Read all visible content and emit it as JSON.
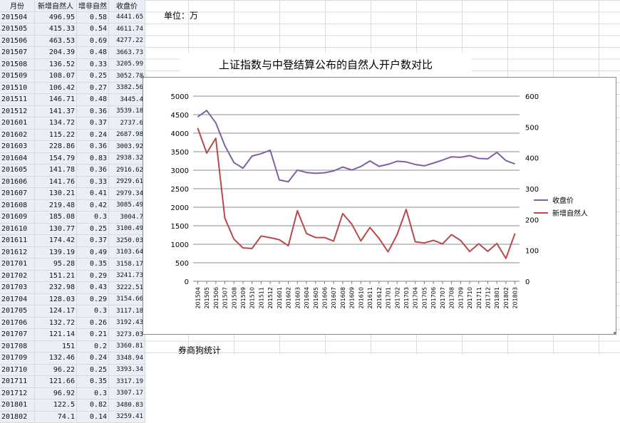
{
  "unit_label": "单位：万",
  "footer_text": "券商狗统计",
  "table": {
    "headers": [
      "月份",
      "新增自然人",
      "增非自然",
      "收盘价"
    ],
    "rows": [
      [
        "201504",
        "496.95",
        "0.58",
        "4441.65"
      ],
      [
        "201505",
        "415.33",
        "0.54",
        "4611.74"
      ],
      [
        "201506",
        "463.53",
        "0.69",
        "4277.22"
      ],
      [
        "201507",
        "204.39",
        "0.48",
        "3663.73"
      ],
      [
        "201508",
        "136.52",
        "0.33",
        "3205.99"
      ],
      [
        "201509",
        "108.07",
        "0.25",
        "3052.78"
      ],
      [
        "201510",
        "106.42",
        "0.27",
        "3382.56"
      ],
      [
        "201511",
        "146.71",
        "0.48",
        "3445.4"
      ],
      [
        "201512",
        "141.37",
        "0.36",
        "3539.18"
      ],
      [
        "201601",
        "134.72",
        "0.37",
        "2737.6"
      ],
      [
        "201602",
        "115.22",
        "0.24",
        "2687.98"
      ],
      [
        "201603",
        "228.86",
        "0.36",
        "3003.92"
      ],
      [
        "201604",
        "154.79",
        "0.83",
        "2938.32"
      ],
      [
        "201605",
        "141.78",
        "0.36",
        "2916.62"
      ],
      [
        "201606",
        "141.76",
        "0.33",
        "2929.61"
      ],
      [
        "201607",
        "130.21",
        "0.41",
        "2979.34"
      ],
      [
        "201608",
        "219.48",
        "0.42",
        "3085.49"
      ],
      [
        "201609",
        "185.08",
        "0.3",
        "3004.7"
      ],
      [
        "201610",
        "130.77",
        "0.25",
        "3100.49"
      ],
      [
        "201611",
        "174.42",
        "0.37",
        "3250.03"
      ],
      [
        "201612",
        "139.19",
        "0.49",
        "3103.64"
      ],
      [
        "201701",
        "95.28",
        "0.35",
        "3158.17"
      ],
      [
        "201702",
        "151.21",
        "0.29",
        "3241.73"
      ],
      [
        "201703",
        "232.98",
        "0.43",
        "3222.51"
      ],
      [
        "201704",
        "128.03",
        "0.29",
        "3154.66"
      ],
      [
        "201705",
        "124.17",
        "0.3",
        "3117.18"
      ],
      [
        "201706",
        "132.72",
        "0.26",
        "3192.43"
      ],
      [
        "201707",
        "121.14",
        "0.21",
        "3273.03"
      ],
      [
        "201708",
        "151",
        "0.2",
        "3360.81"
      ],
      [
        "201709",
        "132.46",
        "0.24",
        "3348.94"
      ],
      [
        "201710",
        "96.22",
        "0.25",
        "3393.34"
      ],
      [
        "201711",
        "121.66",
        "0.35",
        "3317.19"
      ],
      [
        "201712",
        "96.92",
        "0.3",
        "3307.17"
      ],
      [
        "201801",
        "122.5",
        "0.82",
        "3480.83"
      ],
      [
        "201802",
        "74.1",
        "0.14",
        "3259.41"
      ]
    ]
  },
  "chart_data": {
    "type": "line",
    "title": "上证指数与中登结算公布的自然人开户数对比",
    "categories": [
      "201504",
      "201505",
      "201506",
      "201507",
      "201508",
      "201509",
      "201510",
      "201511",
      "201512",
      "201601",
      "201602",
      "201603",
      "201604",
      "201605",
      "201606",
      "201607",
      "201608",
      "201609",
      "201610",
      "201611",
      "201612",
      "201701",
      "201702",
      "201703",
      "201704",
      "201705",
      "201706",
      "201707",
      "201708",
      "201709",
      "201710",
      "201711",
      "201712",
      "201801",
      "201802",
      "201803"
    ],
    "series": [
      {
        "name": "收盘价",
        "axis": "left",
        "color": "#7e60a6",
        "values": [
          4441.65,
          4611.74,
          4277.22,
          3663.73,
          3205.99,
          3052.78,
          3382.56,
          3445.4,
          3539.18,
          2737.6,
          2687.98,
          3003.92,
          2938.32,
          2916.62,
          2929.61,
          2979.34,
          3085.49,
          3004.7,
          3100.49,
          3250.03,
          3103.64,
          3158.17,
          3241.73,
          3222.51,
          3154.66,
          3117.18,
          3192.43,
          3273.03,
          3360.81,
          3348.94,
          3393.34,
          3317.19,
          3307.17,
          3480.83,
          3259.41,
          3168.9
        ]
      },
      {
        "name": "新增自然人",
        "axis": "right",
        "color": "#b94846",
        "values": [
          496.95,
          415.33,
          463.53,
          204.39,
          136.52,
          108.07,
          106.42,
          146.71,
          141.37,
          134.72,
          115.22,
          228.86,
          154.79,
          141.78,
          141.76,
          130.21,
          219.48,
          185.08,
          130.77,
          174.42,
          139.19,
          95.28,
          151.21,
          232.98,
          128.03,
          124.17,
          132.72,
          121.14,
          151,
          132.46,
          96.22,
          121.66,
          96.92,
          122.5,
          74.1,
          155
        ]
      }
    ],
    "y_left": {
      "min": 0,
      "max": 5000,
      "step": 500,
      "ticks": [
        "0",
        "500",
        "1000",
        "1500",
        "2000",
        "2500",
        "3000",
        "3500",
        "4000",
        "4500",
        "5000"
      ]
    },
    "y_right": {
      "min": 0,
      "max": 600,
      "step": 100,
      "ticks": [
        "0",
        "100",
        "200",
        "300",
        "400",
        "500",
        "600"
      ]
    },
    "grid": true,
    "legend_position": "right"
  }
}
